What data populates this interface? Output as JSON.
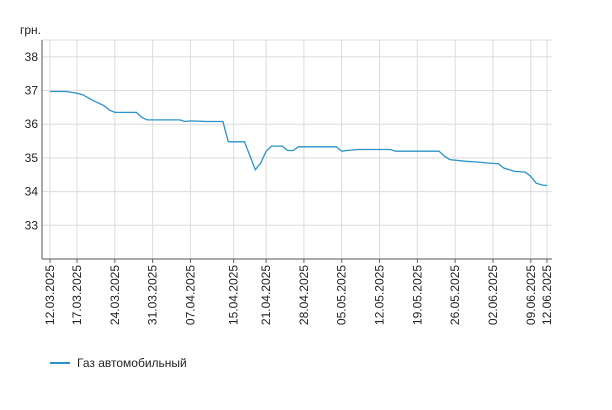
{
  "chart_data": {
    "type": "line",
    "y_label": "грн.",
    "x": [
      "12.03.2025",
      "15.03.2025",
      "17.03.2025",
      "18.03.2025",
      "20.03.2025",
      "22.03.2025",
      "23.03.2025",
      "24.03.2025",
      "28.03.2025",
      "29.03.2025",
      "30.03.2025",
      "05.04.2025",
      "06.04.2025",
      "07.04.2025",
      "10.04.2025",
      "13.04.2025",
      "14.04.2025",
      "17.04.2025",
      "19.04.2025",
      "20.04.2025",
      "21.04.2025",
      "22.04.2025",
      "24.04.2025",
      "25.04.2025",
      "26.04.2025",
      "27.04.2025",
      "04.05.2025",
      "05.05.2025",
      "06.05.2025",
      "08.05.2025",
      "14.05.2025",
      "15.05.2025",
      "23.05.2025",
      "24.05.2025",
      "25.05.2025",
      "28.05.2025",
      "30.05.2025",
      "01.06.2025",
      "03.06.2025",
      "04.06.2025",
      "05.06.2025",
      "06.06.2025",
      "08.06.2025",
      "09.06.2025",
      "10.06.2025",
      "11.06.2025",
      "12.06.2025"
    ],
    "series": [
      {
        "name": "Газ автомобильный",
        "color": "#2a93c9",
        "values": [
          36.97,
          36.97,
          36.92,
          36.88,
          36.7,
          36.55,
          36.42,
          36.35,
          36.35,
          36.2,
          36.13,
          36.13,
          36.08,
          36.1,
          36.08,
          36.08,
          35.48,
          35.48,
          34.65,
          34.85,
          35.2,
          35.35,
          35.35,
          35.22,
          35.22,
          35.33,
          35.33,
          35.2,
          35.22,
          35.25,
          35.25,
          35.2,
          35.2,
          35.05,
          34.95,
          34.9,
          34.88,
          34.85,
          34.83,
          34.7,
          34.65,
          34.6,
          34.58,
          34.45,
          34.25,
          34.2,
          34.18
        ]
      }
    ],
    "xlim": [
      "12.03.2025",
      "12.06.2025"
    ],
    "xticks": [
      "12.03.2025",
      "17.03.2025",
      "24.03.2025",
      "31.03.2025",
      "07.04.2025",
      "15.04.2025",
      "21.04.2025",
      "28.04.2025",
      "05.05.2025",
      "12.05.2025",
      "19.05.2025",
      "26.05.2025",
      "02.06.2025",
      "09.06.2025",
      "12.06.2025"
    ],
    "ylim": [
      32,
      38.5
    ],
    "yticks": [
      33,
      34,
      35,
      36,
      37,
      38
    ],
    "grid": true,
    "legend": "bottom-left"
  }
}
